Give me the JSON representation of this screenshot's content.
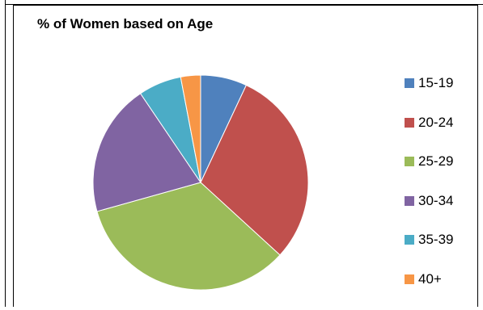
{
  "chart_data": {
    "type": "pie",
    "title": "% of Women based on Age",
    "categories": [
      "15-19",
      "20-24",
      "25-29",
      "30-34",
      "35-39",
      "40+"
    ],
    "values": [
      7,
      30,
      34,
      20,
      6.5,
      3
    ],
    "colors": [
      "#4F81BD",
      "#C0504D",
      "#9BBB59",
      "#8064A2",
      "#4BACC6",
      "#F79646"
    ],
    "start_angle_deg": 0,
    "direction": "clockwise",
    "legend_position": "right"
  }
}
